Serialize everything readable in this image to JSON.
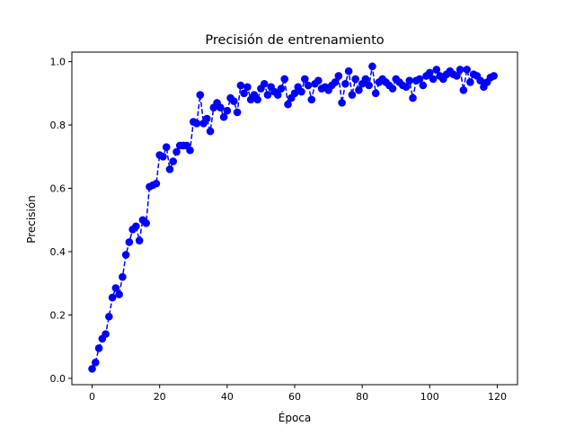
{
  "chart_data": {
    "type": "line",
    "title": "Precisión de entrenamiento",
    "xlabel": "Época",
    "ylabel": "Precisión",
    "xlim": [
      -6,
      126
    ],
    "ylim": [
      -0.02,
      1.03
    ],
    "xticks": [
      0,
      20,
      40,
      60,
      80,
      100,
      120
    ],
    "yticks": [
      0.0,
      0.2,
      0.4,
      0.6,
      0.8,
      1.0
    ],
    "ytick_labels": [
      "0.0",
      "0.2",
      "0.4",
      "0.6",
      "0.8",
      "1.0"
    ],
    "grid": false,
    "legend": "none",
    "series": [
      {
        "color": "#0000ff",
        "line_style": "dashed",
        "marker": "circle",
        "x": [
          0,
          1,
          2,
          3,
          4,
          5,
          6,
          7,
          8,
          9,
          10,
          11,
          12,
          13,
          14,
          15,
          16,
          17,
          18,
          19,
          20,
          21,
          22,
          23,
          24,
          25,
          26,
          27,
          28,
          29,
          30,
          31,
          32,
          33,
          34,
          35,
          36,
          37,
          38,
          39,
          40,
          41,
          42,
          43,
          44,
          45,
          46,
          47,
          48,
          49,
          50,
          51,
          52,
          53,
          54,
          55,
          56,
          57,
          58,
          59,
          60,
          61,
          62,
          63,
          64,
          65,
          66,
          67,
          68,
          69,
          70,
          71,
          72,
          73,
          74,
          75,
          76,
          77,
          78,
          79,
          80,
          81,
          82,
          83,
          84,
          85,
          86,
          87,
          88,
          89,
          90,
          91,
          92,
          93,
          94,
          95,
          96,
          97,
          98,
          99,
          100,
          101,
          102,
          103,
          104,
          105,
          106,
          107,
          108,
          109,
          110,
          111,
          112,
          113,
          114,
          115,
          116,
          117,
          118,
          119
        ],
        "y": [
          0.03,
          0.05,
          0.095,
          0.125,
          0.14,
          0.195,
          0.255,
          0.285,
          0.265,
          0.32,
          0.39,
          0.43,
          0.47,
          0.48,
          0.435,
          0.5,
          0.49,
          0.605,
          0.61,
          0.615,
          0.705,
          0.7,
          0.73,
          0.66,
          0.685,
          0.715,
          0.735,
          0.735,
          0.735,
          0.72,
          0.81,
          0.805,
          0.895,
          0.805,
          0.82,
          0.78,
          0.855,
          0.87,
          0.855,
          0.825,
          0.845,
          0.885,
          0.875,
          0.84,
          0.925,
          0.9,
          0.92,
          0.88,
          0.895,
          0.88,
          0.915,
          0.93,
          0.895,
          0.92,
          0.905,
          0.895,
          0.915,
          0.945,
          0.865,
          0.885,
          0.9,
          0.92,
          0.905,
          0.945,
          0.925,
          0.88,
          0.93,
          0.94,
          0.915,
          0.92,
          0.91,
          0.925,
          0.935,
          0.955,
          0.87,
          0.93,
          0.97,
          0.895,
          0.945,
          0.91,
          0.93,
          0.945,
          0.925,
          0.985,
          0.9,
          0.935,
          0.945,
          0.935,
          0.925,
          0.915,
          0.945,
          0.935,
          0.925,
          0.92,
          0.94,
          0.885,
          0.94,
          0.945,
          0.925,
          0.955,
          0.965,
          0.945,
          0.975,
          0.955,
          0.945,
          0.96,
          0.97,
          0.96,
          0.955,
          0.975,
          0.91,
          0.975,
          0.935,
          0.96,
          0.955,
          0.94,
          0.92,
          0.935,
          0.95,
          0.955
        ]
      }
    ]
  }
}
